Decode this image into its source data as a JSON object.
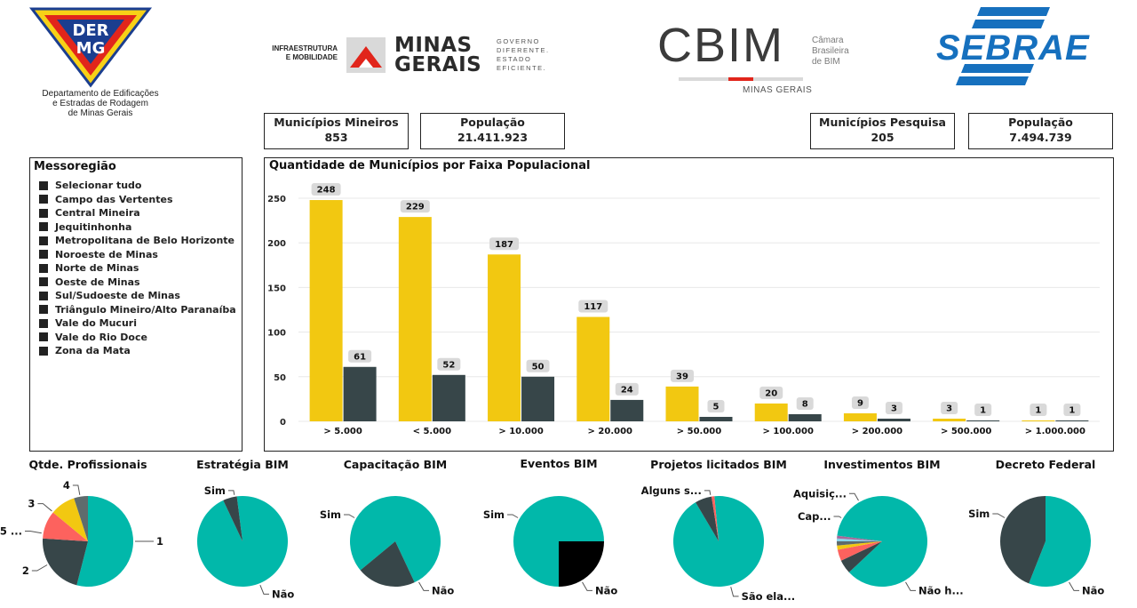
{
  "header": {
    "der_logo_text": [
      "DER",
      "MG"
    ],
    "der_caption": [
      "Departamento de Edificações",
      "e Estradas de Rodagem",
      "de Minas Gerais"
    ],
    "minas_infra": [
      "INFRAESTRUTURA",
      "E MOBILIDADE"
    ],
    "minas_title": [
      "MINAS",
      "GERAIS"
    ],
    "minas_slogan": [
      "GOVERNO",
      "DIFERENTE.",
      "ESTADO",
      "EFICIENTE."
    ],
    "cbim_word": "CBIM",
    "cbim_side": [
      "Câmara",
      "Brasileira",
      "de BIM"
    ],
    "cbim_bottom": "MINAS GERAIS",
    "sebrae_word": "SEBRAE"
  },
  "kpis": {
    "municipios_mineiros": {
      "label": "Municípios Mineiros",
      "value": "853"
    },
    "populacao_mg": {
      "label": "População",
      "value": "21.411.923"
    },
    "municipios_pesquisa": {
      "label": "Municípios Pesquisa",
      "value": "205"
    },
    "populacao_pesquisa": {
      "label": "População",
      "value": "7.494.739"
    }
  },
  "slicer": {
    "title": "Messoregião",
    "items": [
      "Selecionar tudo",
      "Campo das Vertentes",
      "Central Mineira",
      "Jequitinhonha",
      "Metropolitana de Belo Horizonte",
      "Noroeste de Minas",
      "Norte de Minas",
      "Oeste de Minas",
      "Sul/Sudoeste de Minas",
      "Triângulo Mineiro/Alto Paranaíba",
      "Vale do Mucuri",
      "Vale do Rio Doce",
      "Zona da Mata"
    ]
  },
  "colors": {
    "yellow": "#f2c811",
    "dark": "#374649",
    "teal": "#01b8aa",
    "red": "#fd625e",
    "gray": "#8ad4eb",
    "black": "#000000"
  },
  "chart_data": {
    "type": "bar",
    "title": "Quantidade de Municípios por Faixa Populacional",
    "categories": [
      "> 5.000",
      "< 5.000",
      "> 10.000",
      "> 20.000",
      "> 50.000",
      "> 100.000",
      "> 200.000",
      "> 500.000",
      "> 1.000.000"
    ],
    "series": [
      {
        "values": [
          248,
          229,
          187,
          117,
          39,
          20,
          9,
          3,
          1
        ],
        "color": "#f2c811"
      },
      {
        "values": [
          61,
          52,
          50,
          24,
          5,
          8,
          3,
          1,
          1
        ],
        "color": "#374649"
      }
    ],
    "yticks": [
      0,
      50,
      100,
      150,
      200,
      250
    ],
    "ylim": [
      0,
      260
    ],
    "grid": true
  },
  "pies": [
    {
      "title": "Qtde. Profissionais",
      "slices": [
        {
          "label": "1",
          "value": 54,
          "color": "#01b8aa"
        },
        {
          "label": "2",
          "value": 22,
          "color": "#374649"
        },
        {
          "label": "5 ...",
          "value": 10,
          "color": "#fd625e"
        },
        {
          "label": "3",
          "value": 9,
          "color": "#f2c811"
        },
        {
          "label": "4",
          "value": 5,
          "color": "#5f6b6d"
        }
      ]
    },
    {
      "title": "Estratégia BIM",
      "slices": [
        {
          "label": "Não",
          "value": 95,
          "color": "#01b8aa"
        },
        {
          "label": "Sim",
          "value": 5,
          "color": "#374649"
        }
      ]
    },
    {
      "title": "Capacitação BIM",
      "slices": [
        {
          "label": "Não",
          "value": 79,
          "color": "#01b8aa"
        },
        {
          "label": "Sim",
          "value": 21,
          "color": "#374649"
        }
      ]
    },
    {
      "title": "Eventos BIM",
      "slices": [
        {
          "label": "Não",
          "value": 75,
          "color": "#01b8aa"
        },
        {
          "label": "Sim",
          "value": 25,
          "color": "#000000"
        }
      ]
    },
    {
      "title": "Projetos licitados BIM",
      "slices": [
        {
          "label": "São ela...",
          "value": 93,
          "color": "#01b8aa"
        },
        {
          "label": "",
          "value": 6,
          "color": "#374649"
        },
        {
          "label": "Alguns s...",
          "value": 1,
          "color": "#fd625e"
        }
      ]
    },
    {
      "title": "Investimentos BIM",
      "slices": [
        {
          "label": "Não h...",
          "value": 86,
          "color": "#01b8aa"
        },
        {
          "label": "Cap...",
          "value": 5,
          "color": "#374649"
        },
        {
          "label": "Aquisiç...",
          "value": 4,
          "color": "#fd625e"
        },
        {
          "label": "",
          "value": 1.5,
          "color": "#f2c811"
        },
        {
          "label": "",
          "value": 1.5,
          "color": "#5f6b6d"
        },
        {
          "label": "",
          "value": 1,
          "color": "#8ad4eb"
        },
        {
          "label": "",
          "value": 1,
          "color": "#a66999"
        }
      ]
    },
    {
      "title": "Decreto Federal",
      "slices": [
        {
          "label": "Não",
          "value": 56,
          "color": "#01b8aa"
        },
        {
          "label": "Sim",
          "value": 44,
          "color": "#374649"
        }
      ]
    }
  ]
}
